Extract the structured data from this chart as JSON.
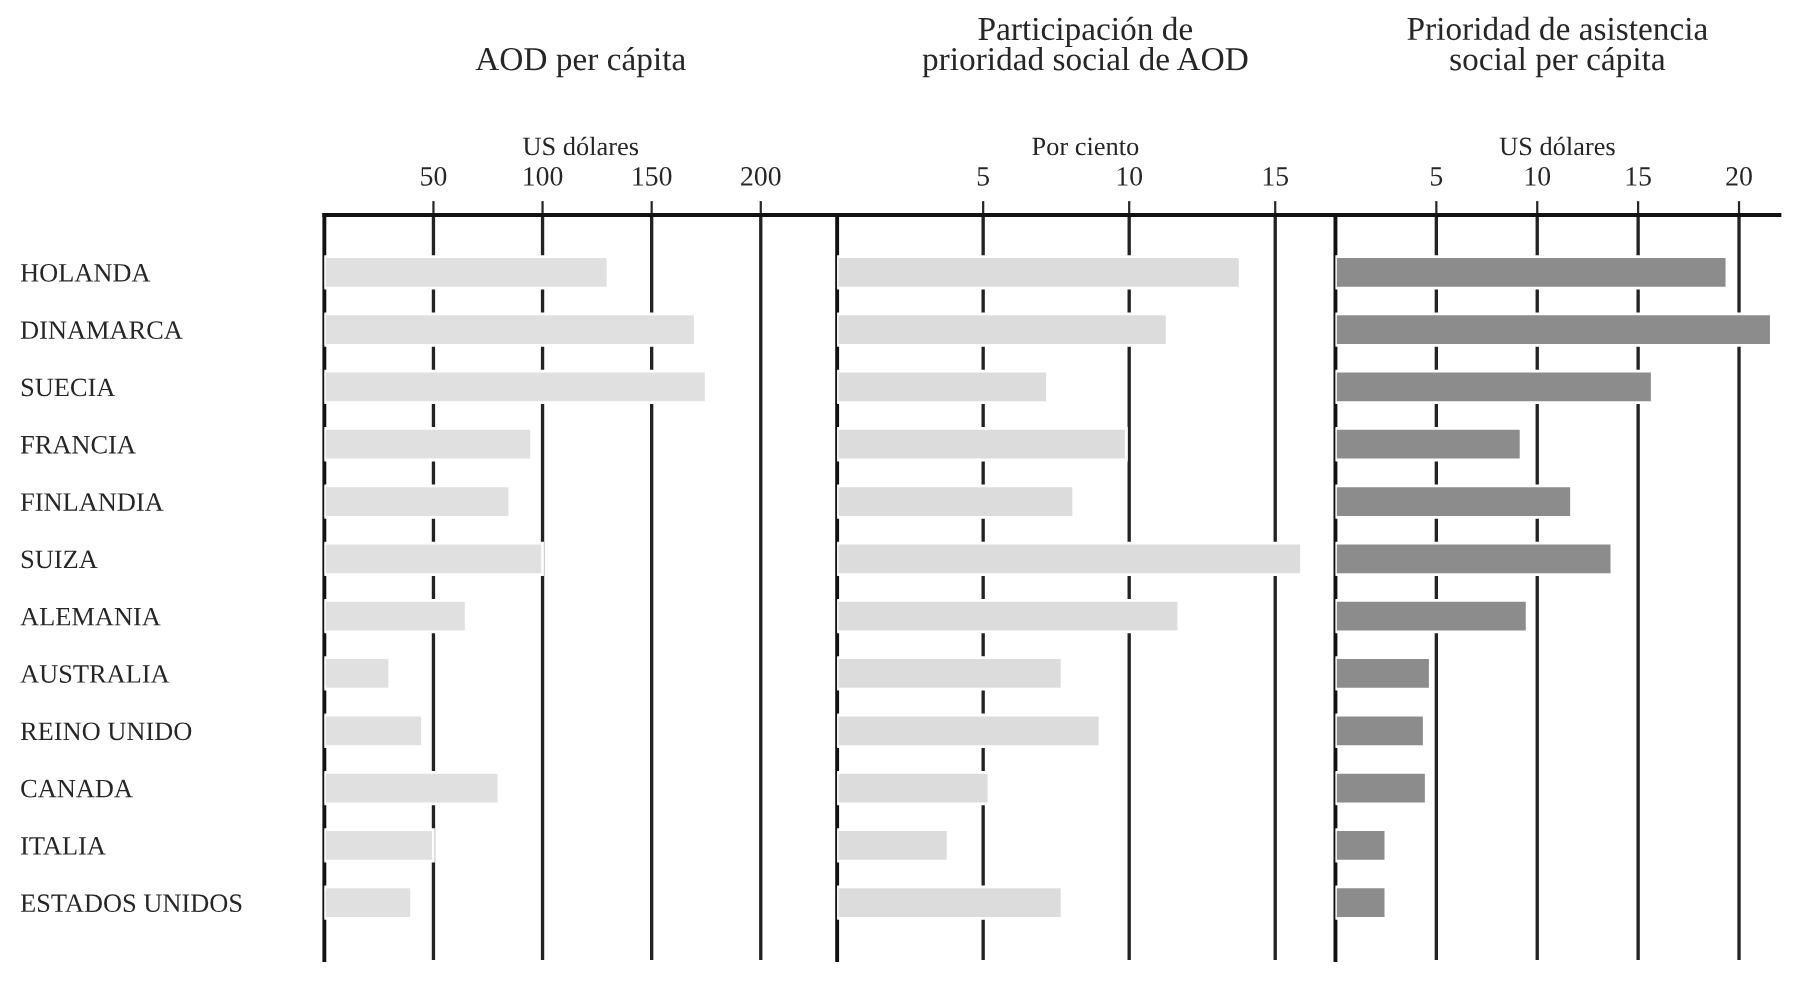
{
  "chart_data": [
    {
      "type": "bar",
      "orientation": "horizontal",
      "title": "AOD per cápita",
      "xlabel": "US dólares",
      "categories": [
        "HOLANDA",
        "DINAMARCA",
        "SUECIA",
        "FRANCIA",
        "FINLANDIA",
        "SUIZA",
        "ALEMANIA",
        "AUSTRALIA",
        "REINO UNIDO",
        "CANADA",
        "ITALIA",
        "ESTADOS UNIDOS"
      ],
      "values": [
        130,
        170,
        175,
        95,
        85,
        100,
        65,
        30,
        45,
        80,
        50,
        40
      ],
      "color": "#e0e0e0",
      "xlim": [
        0,
        235
      ],
      "xticks": [
        50,
        100,
        150,
        200
      ],
      "grid": "x"
    },
    {
      "type": "bar",
      "orientation": "horizontal",
      "title": "Participación de prioridad social de AOD",
      "xlabel": "Por ciento",
      "categories": [
        null,
        null,
        null,
        null,
        null,
        null,
        null,
        null,
        null,
        null,
        null,
        null
      ],
      "values": [
        13.8,
        11.3,
        7.2,
        9.9,
        8.1,
        15.9,
        11.7,
        7.7,
        9.0,
        5.2,
        3.8,
        7.7
      ],
      "color": "#dcdcdc",
      "xlim": [
        0,
        17
      ],
      "xticks": [
        5,
        10,
        15
      ],
      "grid": "x",
      "tick_labels": "x"
    },
    {
      "type": "bar",
      "orientation": "horizontal",
      "title": "Prioridad de asistencia social per cápita",
      "xlabel": "US dólares",
      "categories": [
        null,
        null,
        null,
        null,
        null,
        null,
        null,
        null,
        null,
        null,
        null,
        null
      ],
      "values": [
        19.4,
        21.6,
        15.7,
        9.2,
        11.7,
        13.7,
        9.5,
        4.7,
        4.4,
        4.5,
        2.5,
        2.5
      ],
      "color": "#8c8c8c",
      "xlim": [
        0,
        22
      ],
      "xticks": [
        5,
        10,
        15,
        20
      ],
      "grid": "x",
      "tick_labels": "x"
    }
  ]
}
